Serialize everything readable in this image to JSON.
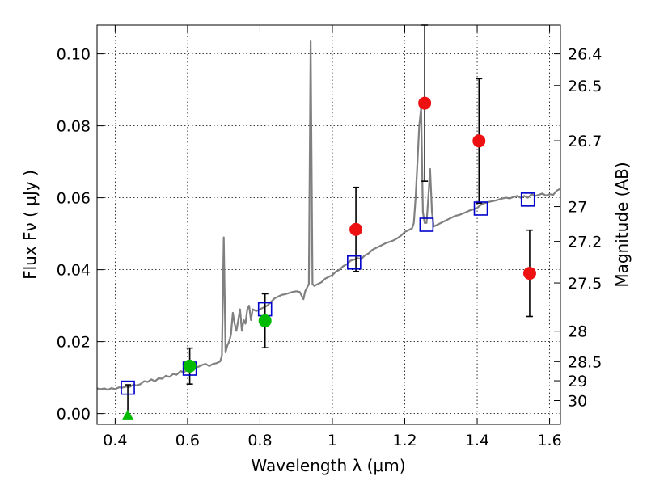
{
  "chart_data": {
    "type": "scatter",
    "xlabel": "Wavelength  λ (μm)",
    "ylabel": "Flux  Fν  ( μJy )",
    "y2label": "Magnitude (AB)",
    "xlim": [
      0.35,
      1.63
    ],
    "ylim": [
      -0.003,
      0.108
    ],
    "grid": true,
    "x_ticks": [
      {
        "value": 0.4,
        "label": "0.4"
      },
      {
        "value": 0.6,
        "label": "0.6"
      },
      {
        "value": 0.8,
        "label": "0.8"
      },
      {
        "value": 1.0,
        "label": "1"
      },
      {
        "value": 1.2,
        "label": "1.2"
      },
      {
        "value": 1.4,
        "label": "1.4"
      },
      {
        "value": 1.6,
        "label": "1.6"
      }
    ],
    "y_ticks": [
      {
        "value": 0.0,
        "label": "0.00"
      },
      {
        "value": 0.02,
        "label": "0.02"
      },
      {
        "value": 0.04,
        "label": "0.04"
      },
      {
        "value": 0.06,
        "label": "0.06"
      },
      {
        "value": 0.08,
        "label": "0.08"
      },
      {
        "value": 0.1,
        "label": "0.10"
      }
    ],
    "mag_ticks": [
      {
        "mag": 26.4,
        "label": "26.4"
      },
      {
        "mag": 26.5,
        "label": "26.5"
      },
      {
        "mag": 26.7,
        "label": "26.7"
      },
      {
        "mag": 27.0,
        "label": "27"
      },
      {
        "mag": 27.2,
        "label": "27.2"
      },
      {
        "mag": 27.5,
        "label": "27.5"
      },
      {
        "mag": 28.0,
        "label": "28"
      },
      {
        "mag": 28.5,
        "label": "28.5"
      },
      {
        "mag": 29.0,
        "label": "29"
      },
      {
        "mag": 30.0,
        "label": "30"
      }
    ],
    "series": [
      {
        "kind": "model-spectrum",
        "color": "#808080",
        "points": [
          [
            0.35,
            0.007
          ],
          [
            0.36,
            0.0068
          ],
          [
            0.37,
            0.007
          ],
          [
            0.38,
            0.0066
          ],
          [
            0.39,
            0.0071
          ],
          [
            0.4,
            0.0068
          ],
          [
            0.41,
            0.0073
          ],
          [
            0.42,
            0.0072
          ],
          [
            0.43,
            0.0075
          ],
          [
            0.44,
            0.0074
          ],
          [
            0.45,
            0.008
          ],
          [
            0.46,
            0.0078
          ],
          [
            0.47,
            0.0082
          ],
          [
            0.48,
            0.009
          ],
          [
            0.49,
            0.0088
          ],
          [
            0.5,
            0.0095
          ],
          [
            0.51,
            0.009
          ],
          [
            0.52,
            0.0098
          ],
          [
            0.53,
            0.0097
          ],
          [
            0.54,
            0.0105
          ],
          [
            0.55,
            0.0102
          ],
          [
            0.56,
            0.011
          ],
          [
            0.57,
            0.0108
          ],
          [
            0.58,
            0.0118
          ],
          [
            0.59,
            0.0115
          ],
          [
            0.6,
            0.0122
          ],
          [
            0.61,
            0.0118
          ],
          [
            0.62,
            0.0128
          ],
          [
            0.63,
            0.013
          ],
          [
            0.64,
            0.0135
          ],
          [
            0.65,
            0.0138
          ],
          [
            0.66,
            0.0132
          ],
          [
            0.67,
            0.0138
          ],
          [
            0.68,
            0.014
          ],
          [
            0.69,
            0.0145
          ],
          [
            0.695,
            0.016
          ],
          [
            0.7,
            0.049
          ],
          [
            0.705,
            0.017
          ],
          [
            0.71,
            0.019
          ],
          [
            0.715,
            0.02
          ],
          [
            0.72,
            0.022
          ],
          [
            0.725,
            0.028
          ],
          [
            0.73,
            0.025
          ],
          [
            0.735,
            0.023
          ],
          [
            0.74,
            0.026
          ],
          [
            0.745,
            0.029
          ],
          [
            0.75,
            0.023
          ],
          [
            0.755,
            0.026
          ],
          [
            0.76,
            0.025
          ],
          [
            0.765,
            0.029
          ],
          [
            0.77,
            0.03
          ],
          [
            0.775,
            0.026
          ],
          [
            0.78,
            0.029
          ],
          [
            0.79,
            0.0285
          ],
          [
            0.8,
            0.029
          ],
          [
            0.81,
            0.0295
          ],
          [
            0.82,
            0.03
          ],
          [
            0.83,
            0.031
          ],
          [
            0.84,
            0.032
          ],
          [
            0.85,
            0.0325
          ],
          [
            0.86,
            0.033
          ],
          [
            0.87,
            0.0332
          ],
          [
            0.88,
            0.0335
          ],
          [
            0.89,
            0.0338
          ],
          [
            0.9,
            0.034
          ],
          [
            0.91,
            0.0338
          ],
          [
            0.92,
            0.0318
          ],
          [
            0.925,
            0.034
          ],
          [
            0.93,
            0.035
          ],
          [
            0.935,
            0.036
          ],
          [
            0.94,
            0.1035
          ],
          [
            0.945,
            0.036
          ],
          [
            0.95,
            0.0355
          ],
          [
            0.96,
            0.036
          ],
          [
            0.97,
            0.0365
          ],
          [
            0.98,
            0.0375
          ],
          [
            0.99,
            0.038
          ],
          [
            1.0,
            0.0385
          ],
          [
            1.01,
            0.0395
          ],
          [
            1.02,
            0.04
          ],
          [
            1.03,
            0.041
          ],
          [
            1.04,
            0.0415
          ],
          [
            1.05,
            0.0425
          ],
          [
            1.06,
            0.0428
          ],
          [
            1.07,
            0.0432
          ],
          [
            1.08,
            0.043
          ],
          [
            1.09,
            0.044
          ],
          [
            1.1,
            0.0445
          ],
          [
            1.11,
            0.0455
          ],
          [
            1.12,
            0.046
          ],
          [
            1.13,
            0.0465
          ],
          [
            1.14,
            0.047
          ],
          [
            1.15,
            0.0475
          ],
          [
            1.16,
            0.0478
          ],
          [
            1.17,
            0.0482
          ],
          [
            1.18,
            0.0488
          ],
          [
            1.19,
            0.0495
          ],
          [
            1.2,
            0.0505
          ],
          [
            1.21,
            0.051
          ],
          [
            1.22,
            0.0515
          ],
          [
            1.225,
            0.053
          ],
          [
            1.23,
            0.06
          ],
          [
            1.235,
            0.07
          ],
          [
            1.24,
            0.08
          ],
          [
            1.245,
            0.085
          ],
          [
            1.25,
            0.056
          ],
          [
            1.255,
            0.053
          ],
          [
            1.26,
            0.053
          ],
          [
            1.265,
            0.06
          ],
          [
            1.27,
            0.068
          ],
          [
            1.275,
            0.056
          ],
          [
            1.28,
            0.052
          ],
          [
            1.29,
            0.0525
          ],
          [
            1.3,
            0.053
          ],
          [
            1.31,
            0.0535
          ],
          [
            1.32,
            0.054
          ],
          [
            1.33,
            0.0545
          ],
          [
            1.34,
            0.055
          ],
          [
            1.35,
            0.0552
          ],
          [
            1.36,
            0.0556
          ],
          [
            1.37,
            0.056
          ],
          [
            1.38,
            0.0565
          ],
          [
            1.39,
            0.0568
          ],
          [
            1.4,
            0.0572
          ],
          [
            1.41,
            0.058
          ],
          [
            1.42,
            0.0585
          ],
          [
            1.43,
            0.0588
          ],
          [
            1.44,
            0.059
          ],
          [
            1.45,
            0.0592
          ],
          [
            1.46,
            0.0595
          ],
          [
            1.47,
            0.0598
          ],
          [
            1.48,
            0.06
          ],
          [
            1.49,
            0.0598
          ],
          [
            1.5,
            0.0602
          ],
          [
            1.51,
            0.0605
          ],
          [
            1.52,
            0.06
          ],
          [
            1.53,
            0.0605
          ],
          [
            1.54,
            0.06
          ],
          [
            1.55,
            0.061
          ],
          [
            1.56,
            0.0605
          ],
          [
            1.57,
            0.0608
          ],
          [
            1.58,
            0.0612
          ],
          [
            1.59,
            0.0606
          ],
          [
            1.6,
            0.061
          ],
          [
            1.61,
            0.0608
          ],
          [
            1.62,
            0.062
          ],
          [
            1.63,
            0.0625
          ]
        ]
      },
      {
        "kind": "model-photometry",
        "marker": "open-square",
        "color": "#0000cc",
        "points": [
          {
            "x": 0.435,
            "y": 0.0072
          },
          {
            "x": 0.606,
            "y": 0.0125
          },
          {
            "x": 0.814,
            "y": 0.029
          },
          {
            "x": 1.06,
            "y": 0.042
          },
          {
            "x": 1.26,
            "y": 0.0525
          },
          {
            "x": 1.41,
            "y": 0.057
          },
          {
            "x": 1.54,
            "y": 0.0595
          }
        ]
      },
      {
        "kind": "observed-green",
        "marker": "filled-circle",
        "color": "#00bb00",
        "points": [
          {
            "x": 0.606,
            "y": 0.0132,
            "err": 0.005
          },
          {
            "x": 0.814,
            "y": 0.0258,
            "err": 0.0075
          }
        ]
      },
      {
        "kind": "upper-limit",
        "marker": "triangle",
        "color": "#00bb00",
        "points": [
          {
            "x": 0.435,
            "y": -0.0005,
            "top": 0.008
          }
        ]
      },
      {
        "kind": "observed-red",
        "marker": "filled-circle",
        "color": "#ee1111",
        "points": [
          {
            "x": 1.065,
            "y": 0.0512,
            "err": 0.0117
          },
          {
            "x": 1.255,
            "y": 0.0863,
            "err": 0.0217
          },
          {
            "x": 1.405,
            "y": 0.0758,
            "err": 0.0173
          },
          {
            "x": 1.545,
            "y": 0.039,
            "err": 0.012
          }
        ]
      }
    ]
  }
}
